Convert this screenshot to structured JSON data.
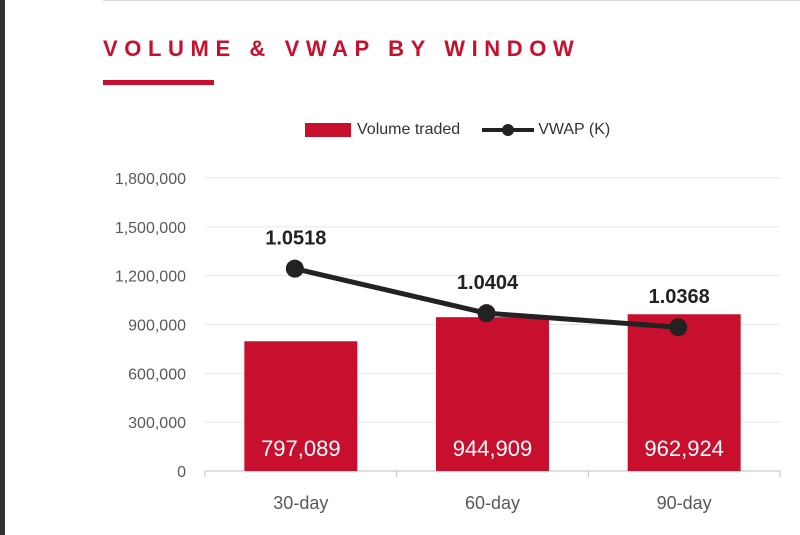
{
  "header": {
    "title": "VOLUME & VWAP BY WINDOW"
  },
  "colors": {
    "accent": "#c8102e",
    "line": "#222222",
    "grid": "#e6e6e6",
    "axis_text": "#595959"
  },
  "chart_data": {
    "type": "bar",
    "categories": [
      "30-day",
      "60-day",
      "90-day"
    ],
    "ylim": [
      0,
      1800000
    ],
    "yticks": [
      "0",
      "300,000",
      "600,000",
      "900,000",
      "1,200,000",
      "1,500,000",
      "1,800,000"
    ],
    "legend_position": "top",
    "grid": true,
    "series": [
      {
        "name": "Volume traded",
        "type": "bar",
        "values": [
          797089,
          944909,
          962924
        ],
        "labels": [
          "797,089",
          "944,909",
          "962,924"
        ]
      },
      {
        "name": "VWAP (K)",
        "type": "line",
        "values": [
          1.0518,
          1.0404,
          1.0368
        ],
        "labels": [
          "1.0518",
          "1.0404",
          "1.0368"
        ]
      }
    ]
  }
}
